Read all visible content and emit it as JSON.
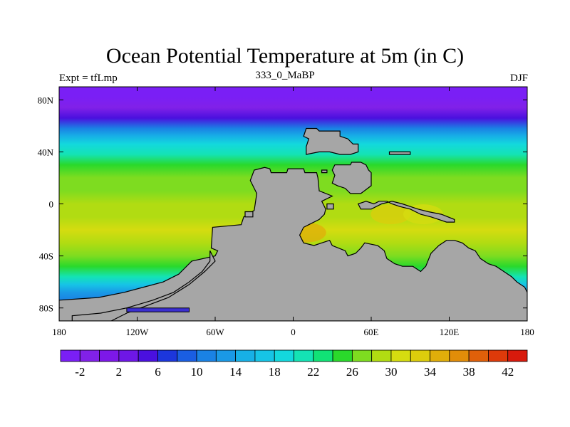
{
  "title": "Ocean Potential Temperature at 5m (in C)",
  "subtitle_left": "Expt = tfLmp",
  "subtitle_center": "333_0_MaBP",
  "subtitle_right": "DJF",
  "chart_data": {
    "type": "heatmap",
    "x_range": [
      -180,
      180
    ],
    "y_range": [
      -90,
      90
    ],
    "x_ticks": [
      {
        "value": -180,
        "label": "180"
      },
      {
        "value": -120,
        "label": "120W"
      },
      {
        "value": -60,
        "label": "60W"
      },
      {
        "value": 0,
        "label": "0"
      },
      {
        "value": 60,
        "label": "60E"
      },
      {
        "value": 120,
        "label": "120E"
      },
      {
        "value": 180,
        "label": "180"
      }
    ],
    "y_ticks": [
      {
        "value": 80,
        "label": "80N"
      },
      {
        "value": 40,
        "label": "40N"
      },
      {
        "value": 0,
        "label": "0"
      },
      {
        "value": -40,
        "label": "40S"
      },
      {
        "value": -80,
        "label": "80S"
      }
    ],
    "latitude_bands": [
      {
        "lat": 90,
        "temp": -3
      },
      {
        "lat": 82,
        "temp": -3
      },
      {
        "lat": 74,
        "temp": -1
      },
      {
        "lat": 66,
        "temp": 4
      },
      {
        "lat": 58,
        "temp": 11
      },
      {
        "lat": 52,
        "temp": 15
      },
      {
        "lat": 46,
        "temp": 18
      },
      {
        "lat": 38,
        "temp": 21
      },
      {
        "lat": 30,
        "temp": 24
      },
      {
        "lat": 20,
        "temp": 26
      },
      {
        "lat": 10,
        "temp": 27
      },
      {
        "lat": 0,
        "temp": 28
      },
      {
        "lat": -10,
        "temp": 29
      },
      {
        "lat": -20,
        "temp": 30
      },
      {
        "lat": -30,
        "temp": 29
      },
      {
        "lat": -40,
        "temp": 27
      },
      {
        "lat": -48,
        "temp": 25
      },
      {
        "lat": -56,
        "temp": 21
      },
      {
        "lat": -62,
        "temp": 17
      },
      {
        "lat": -68,
        "temp": 13
      },
      {
        "lat": -74,
        "temp": 10
      },
      {
        "lat": -78,
        "temp": 6
      },
      {
        "lat": -82,
        "temp": 2
      },
      {
        "lat": -90,
        "temp": 0
      }
    ],
    "warm_pools": [
      {
        "lon": 10,
        "lat": -22,
        "temp": 34
      },
      {
        "lon": 75,
        "lat": -8,
        "temp": 32
      },
      {
        "lon": 100,
        "lat": -8,
        "temp": 31
      }
    ],
    "land_color": "#a6a6a6",
    "continents": [
      {
        "name": "pangaea-main",
        "points": [
          [
            -30,
            26
          ],
          [
            -22,
            28
          ],
          [
            -18,
            27
          ],
          [
            -17,
            24
          ],
          [
            -5,
            24
          ],
          [
            -4,
            27
          ],
          [
            8,
            27
          ],
          [
            9,
            24
          ],
          [
            18,
            24
          ],
          [
            19,
            20
          ],
          [
            20,
            10
          ],
          [
            30,
            6
          ],
          [
            22,
            2
          ],
          [
            25,
            -4
          ],
          [
            24,
            -8
          ],
          [
            20,
            -12
          ],
          [
            12,
            -16
          ],
          [
            8,
            -18
          ],
          [
            5,
            -24
          ],
          [
            8,
            -30
          ],
          [
            16,
            -32
          ],
          [
            22,
            -30
          ],
          [
            28,
            -28
          ],
          [
            30,
            -32
          ],
          [
            40,
            -36
          ],
          [
            42,
            -40
          ],
          [
            48,
            -38
          ],
          [
            52,
            -34
          ],
          [
            55,
            -30
          ],
          [
            60,
            -31
          ],
          [
            65,
            -32
          ],
          [
            70,
            -36
          ],
          [
            72,
            -42
          ],
          [
            78,
            -46
          ],
          [
            84,
            -48
          ],
          [
            92,
            -48
          ],
          [
            98,
            -52
          ],
          [
            102,
            -48
          ],
          [
            106,
            -38
          ],
          [
            112,
            -32
          ],
          [
            118,
            -28
          ],
          [
            124,
            -28
          ],
          [
            130,
            -30
          ],
          [
            135,
            -34
          ],
          [
            140,
            -36
          ],
          [
            144,
            -42
          ],
          [
            150,
            -46
          ],
          [
            156,
            -48
          ],
          [
            162,
            -52
          ],
          [
            168,
            -56
          ],
          [
            172,
            -60
          ],
          [
            178,
            -64
          ],
          [
            180,
            -68
          ],
          [
            180,
            -90
          ],
          [
            -180,
            -90
          ],
          [
            -180,
            -74
          ],
          [
            -150,
            -72
          ],
          [
            -130,
            -68
          ],
          [
            -115,
            -64
          ],
          [
            -100,
            -60
          ],
          [
            -88,
            -54
          ],
          [
            -78,
            -44
          ],
          [
            -60,
            -40
          ],
          [
            -58,
            -36
          ],
          [
            -63,
            -34
          ],
          [
            -62,
            -18
          ],
          [
            -40,
            -16
          ],
          [
            -38,
            -10
          ],
          [
            -30,
            -5
          ],
          [
            -28,
            8
          ],
          [
            -33,
            18
          ],
          [
            -30,
            26
          ]
        ]
      },
      {
        "name": "north-block",
        "points": [
          [
            10,
            58
          ],
          [
            18,
            58
          ],
          [
            20,
            56
          ],
          [
            36,
            56
          ],
          [
            36,
            52
          ],
          [
            42,
            50
          ],
          [
            46,
            46
          ],
          [
            50,
            46
          ],
          [
            50,
            40
          ],
          [
            44,
            38
          ],
          [
            36,
            38
          ],
          [
            28,
            40
          ],
          [
            20,
            40
          ],
          [
            10,
            38
          ],
          [
            10,
            44
          ],
          [
            12,
            50
          ],
          [
            8,
            52
          ],
          [
            10,
            58
          ]
        ]
      },
      {
        "name": "central-asia-block",
        "points": [
          [
            32,
            30
          ],
          [
            44,
            30
          ],
          [
            45,
            32
          ],
          [
            52,
            32
          ],
          [
            56,
            30
          ],
          [
            58,
            26
          ],
          [
            60,
            24
          ],
          [
            60,
            14
          ],
          [
            52,
            8
          ],
          [
            44,
            8
          ],
          [
            40,
            12
          ],
          [
            34,
            14
          ],
          [
            30,
            16
          ],
          [
            32,
            22
          ],
          [
            30,
            26
          ],
          [
            32,
            30
          ]
        ]
      },
      {
        "name": "east-asia-strip",
        "points": [
          [
            50,
            0
          ],
          [
            56,
            2
          ],
          [
            62,
            0
          ],
          [
            66,
            2
          ],
          [
            72,
            2
          ],
          [
            76,
            0
          ],
          [
            82,
            -2
          ],
          [
            90,
            -4
          ],
          [
            98,
            -8
          ],
          [
            106,
            -10
          ],
          [
            112,
            -12
          ],
          [
            118,
            -14
          ],
          [
            124,
            -14
          ],
          [
            124,
            -12
          ],
          [
            114,
            -8
          ],
          [
            104,
            -6
          ],
          [
            96,
            -4
          ],
          [
            90,
            -2
          ],
          [
            84,
            0
          ],
          [
            76,
            2
          ],
          [
            68,
            0
          ],
          [
            60,
            -4
          ],
          [
            52,
            -4
          ],
          [
            50,
            0
          ]
        ]
      },
      {
        "name": "island-east",
        "points": [
          [
            74,
            40
          ],
          [
            90,
            40
          ],
          [
            90,
            38
          ],
          [
            74,
            38
          ],
          [
            74,
            40
          ]
        ]
      },
      {
        "name": "island-small-north",
        "points": [
          [
            22,
            26
          ],
          [
            26,
            26
          ],
          [
            26,
            24
          ],
          [
            22,
            24
          ],
          [
            22,
            26
          ]
        ]
      },
      {
        "name": "island-small-tethys",
        "points": [
          [
            26,
            0
          ],
          [
            31,
            0
          ],
          [
            31,
            -4
          ],
          [
            26,
            -4
          ],
          [
            26,
            0
          ]
        ]
      },
      {
        "name": "island-west",
        "points": [
          [
            -37,
            -6
          ],
          [
            -31,
            -6
          ],
          [
            -31,
            -10
          ],
          [
            -37,
            -10
          ],
          [
            -37,
            -6
          ]
        ]
      },
      {
        "name": "west-peninsula",
        "points": [
          [
            -64,
            -36
          ],
          [
            -60,
            -44
          ],
          [
            -68,
            -52
          ],
          [
            -80,
            -62
          ],
          [
            -96,
            -72
          ],
          [
            -112,
            -78
          ],
          [
            -128,
            -84
          ],
          [
            -140,
            -90
          ],
          [
            -170,
            -90
          ],
          [
            -170,
            -86
          ],
          [
            -148,
            -84
          ],
          [
            -128,
            -80
          ],
          [
            -108,
            -74
          ],
          [
            -92,
            -68
          ],
          [
            -80,
            -60
          ],
          [
            -70,
            -52
          ],
          [
            -64,
            -44
          ],
          [
            -64,
            -36
          ]
        ]
      }
    ],
    "ice_shelf": {
      "points": [
        [
          -128,
          -80
        ],
        [
          -80,
          -80
        ],
        [
          -80,
          -83
        ],
        [
          -128,
          -83
        ],
        [
          -128,
          -80
        ]
      ],
      "color": "#3b2fd1"
    },
    "colorbar": {
      "levels": [
        -4,
        -2,
        0,
        2,
        4,
        6,
        8,
        10,
        12,
        14,
        16,
        18,
        20,
        22,
        24,
        26,
        28,
        30,
        32,
        34,
        36,
        38,
        40,
        42,
        44
      ],
      "labels": [
        "-2",
        "2",
        "6",
        "10",
        "14",
        "18",
        "22",
        "26",
        "30",
        "34",
        "38",
        "42"
      ],
      "label_values": [
        -2,
        2,
        6,
        10,
        14,
        18,
        22,
        26,
        30,
        34,
        38,
        42
      ],
      "colors": [
        "#7a1ff5",
        "#8121e8",
        "#7d18e8",
        "#6e17e6",
        "#4a10df",
        "#1c36dc",
        "#1a5ee2",
        "#1a82e4",
        "#1a99e6",
        "#17b0e6",
        "#16c4e6",
        "#13d8dd",
        "#14e3b4",
        "#11e276",
        "#2ad92b",
        "#7edc20",
        "#b1dc12",
        "#d5dc10",
        "#dccd0c",
        "#e0ae0a",
        "#e28d09",
        "#e0600a",
        "#de3a0a",
        "#d81a0c"
      ]
    }
  }
}
